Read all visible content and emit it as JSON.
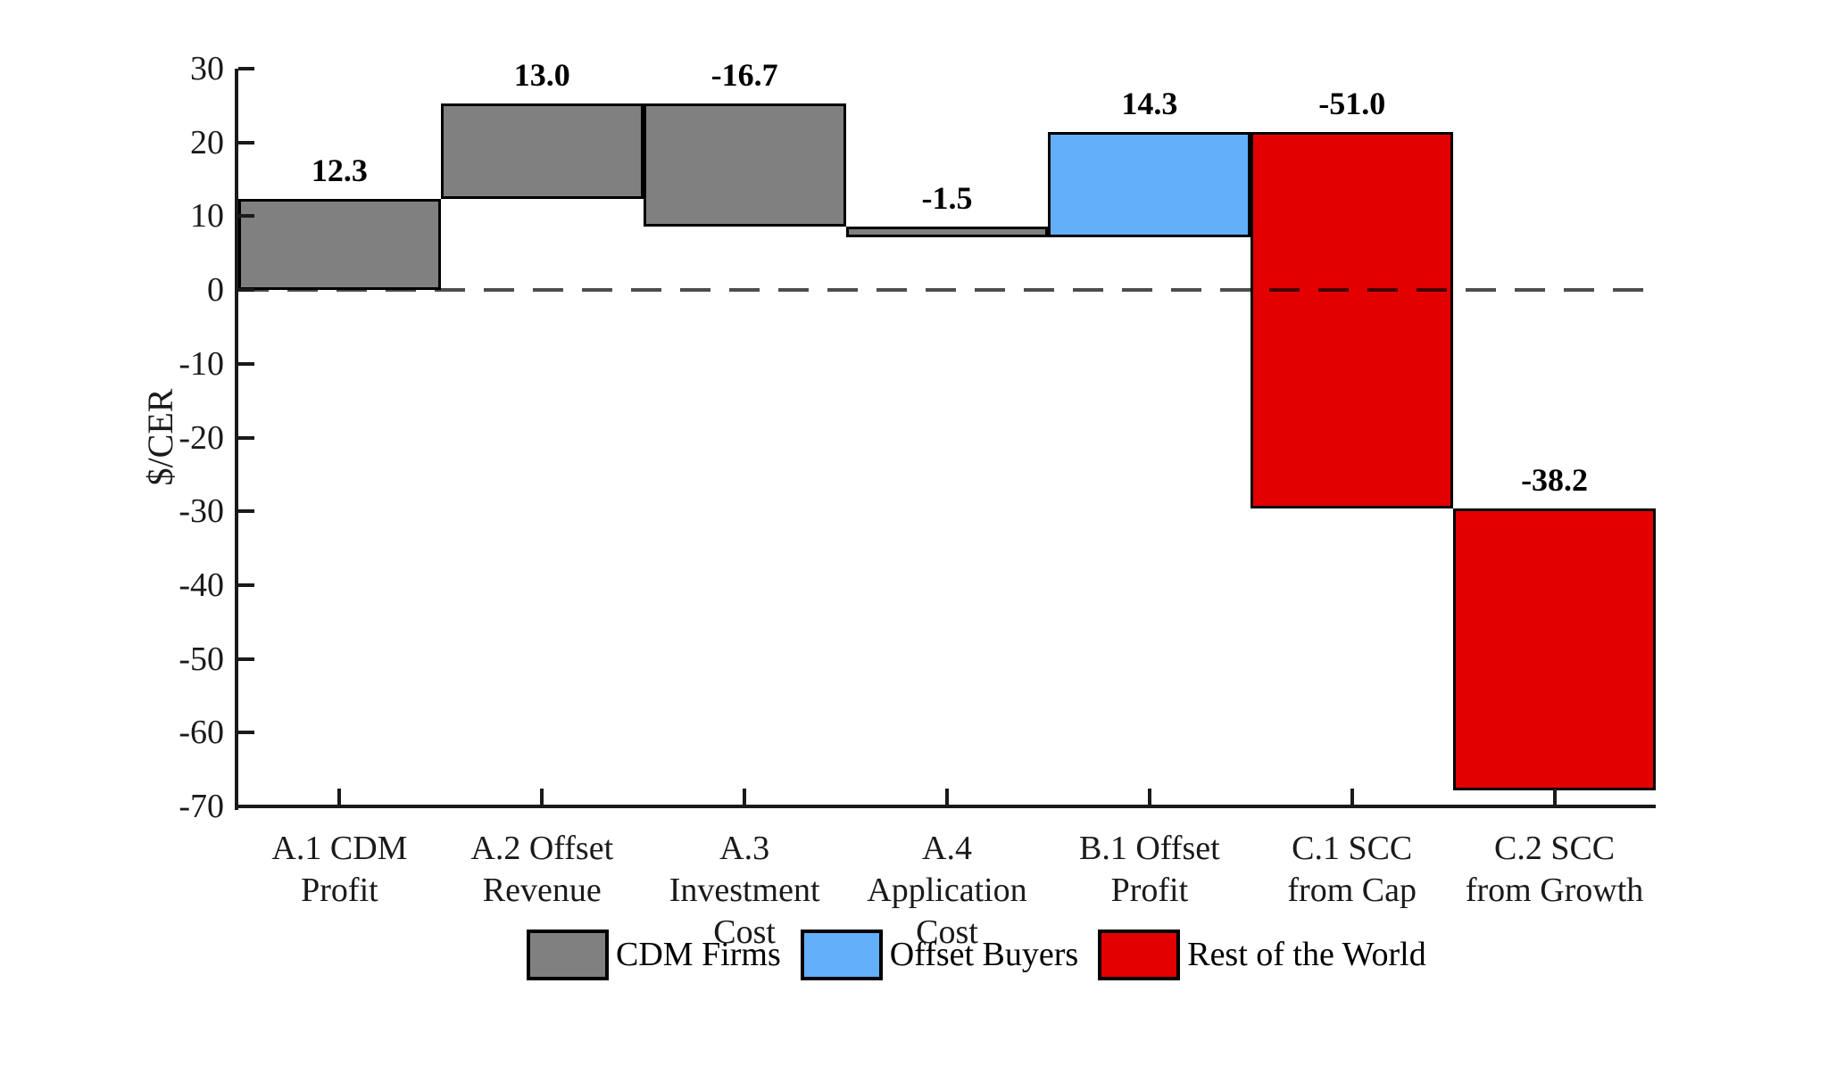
{
  "chart_data": {
    "type": "bar",
    "subtype": "waterfall",
    "title": "",
    "xlabel": "",
    "ylabel": "$/CER",
    "ylim": [
      -70,
      30
    ],
    "yticks": [
      30,
      20,
      10,
      0,
      -10,
      -20,
      -30,
      -40,
      -50,
      -60,
      -70
    ],
    "grid": false,
    "zero_line": {
      "y": 0,
      "style": "dashed",
      "color": "#4d4d4d"
    },
    "categories": [
      "A.1 CDM\nProfit",
      "A.2 Offset\nRevenue",
      "A.3 Investment\nCost",
      "A.4 Application\nCost",
      "B.1 Offset\nProfit",
      "C.1 SCC\nfrom Cap",
      "C.2 SCC\nfrom Growth"
    ],
    "bars": [
      {
        "category": "A.1 CDM Profit",
        "value": 12.3,
        "value_label": "12.3",
        "start": 0,
        "end": 12.3,
        "group": "CDM Firms",
        "color": "#808080"
      },
      {
        "category": "A.2 Offset Revenue",
        "value": 13.0,
        "value_label": "13.0",
        "start": 12.3,
        "end": 25.3,
        "group": "CDM Firms",
        "color": "#808080"
      },
      {
        "category": "A.3 Investment Cost",
        "value": -16.7,
        "value_label": "-16.7",
        "start": 25.3,
        "end": 8.6,
        "group": "CDM Firms",
        "color": "#808080"
      },
      {
        "category": "A.4 Application Cost",
        "value": -1.5,
        "value_label": "-1.5",
        "start": 8.6,
        "end": 7.1,
        "group": "CDM Firms",
        "color": "#808080"
      },
      {
        "category": "B.1 Offset Profit",
        "value": 14.3,
        "value_label": "14.3",
        "start": 7.1,
        "end": 21.4,
        "group": "Offset Buyers",
        "color": "#63AFFA"
      },
      {
        "category": "C.1 SCC from Cap",
        "value": -51.0,
        "value_label": "-51.0",
        "start": 21.4,
        "end": -29.6,
        "group": "Rest of the World",
        "color": "#E30000"
      },
      {
        "category": "C.2 SCC from Growth",
        "value": -38.2,
        "value_label": "-38.2",
        "start": -29.6,
        "end": -67.8,
        "group": "Rest of the World",
        "color": "#E30000"
      }
    ],
    "legend": {
      "position": "bottom",
      "items": [
        {
          "label": "CDM Firms",
          "color": "#808080"
        },
        {
          "label": "Offset Buyers",
          "color": "#63AFFA"
        },
        {
          "label": "Rest of the World",
          "color": "#E30000"
        }
      ]
    },
    "colors": {
      "bar_border": "#000000",
      "axis": "#1a1a1a",
      "zero_line": "#4d4d4d",
      "text": "#000000"
    }
  }
}
